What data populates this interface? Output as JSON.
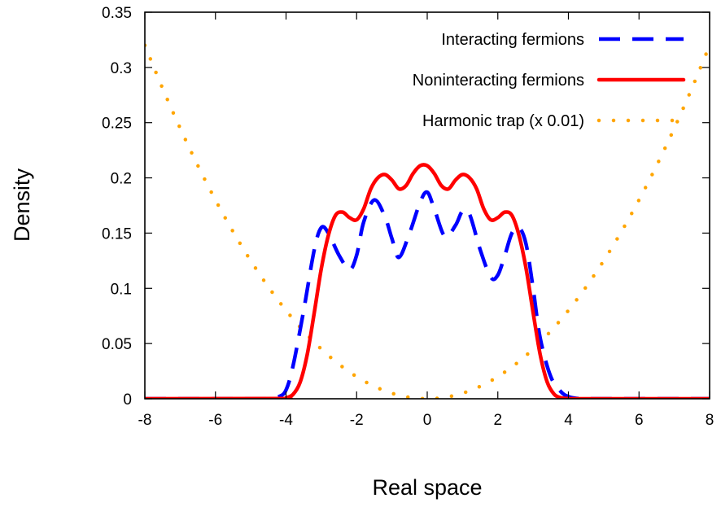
{
  "chart_data": {
    "type": "line",
    "xlabel": "Real space",
    "ylabel": "Density",
    "xlim": [
      -8,
      8
    ],
    "ylim": [
      0,
      0.35
    ],
    "xticks": [
      "-8",
      "-6",
      "-4",
      "-2",
      "0",
      "2",
      "4",
      "6",
      "8"
    ],
    "yticks": [
      "0",
      "0.05",
      "0.1",
      "0.15",
      "0.2",
      "0.25",
      "0.3",
      "0.35"
    ],
    "grid": false,
    "legend_position": "top-right",
    "series": [
      {
        "name": "Interacting fermions",
        "color": "#0000ff",
        "style": "dashed",
        "x": [
          -8,
          -5,
          -4.5,
          -4.2,
          -4.0,
          -3.8,
          -3.5,
          -3.2,
          -3.0,
          -2.8,
          -2.5,
          -2.2,
          -2.0,
          -1.8,
          -1.5,
          -1.2,
          -1.0,
          -0.8,
          -0.5,
          -0.2,
          0,
          0.2,
          0.5,
          0.8,
          1.0,
          1.2,
          1.5,
          1.8,
          2.0,
          2.2,
          2.4,
          2.6,
          2.8,
          3.0,
          3.2,
          3.5,
          3.8,
          4.0,
          4.2,
          4.5,
          5,
          8
        ],
        "y": [
          0,
          0,
          0.0005,
          0.002,
          0.008,
          0.03,
          0.08,
          0.135,
          0.155,
          0.15,
          0.13,
          0.117,
          0.13,
          0.16,
          0.18,
          0.165,
          0.145,
          0.128,
          0.15,
          0.178,
          0.187,
          0.172,
          0.147,
          0.157,
          0.17,
          0.167,
          0.135,
          0.11,
          0.112,
          0.13,
          0.15,
          0.155,
          0.14,
          0.1,
          0.055,
          0.02,
          0.006,
          0.002,
          0.0005,
          0,
          0,
          0
        ]
      },
      {
        "name": "Noninteracting fermions",
        "color": "#ff0000",
        "style": "solid",
        "x": [
          -8,
          -4.2,
          -4.0,
          -3.8,
          -3.6,
          -3.4,
          -3.2,
          -3.0,
          -2.8,
          -2.6,
          -2.4,
          -2.2,
          -2.0,
          -1.8,
          -1.6,
          -1.4,
          -1.2,
          -1.0,
          -0.8,
          -0.6,
          -0.4,
          -0.2,
          0,
          0.2,
          0.4,
          0.6,
          0.8,
          1.0,
          1.2,
          1.4,
          1.6,
          1.8,
          2.0,
          2.2,
          2.4,
          2.6,
          2.8,
          3.0,
          3.2,
          3.4,
          3.6,
          3.8,
          4.0,
          4.2,
          8
        ],
        "y": [
          0,
          0.0002,
          0.0008,
          0.004,
          0.015,
          0.04,
          0.078,
          0.118,
          0.148,
          0.166,
          0.169,
          0.164,
          0.162,
          0.172,
          0.19,
          0.2,
          0.203,
          0.198,
          0.19,
          0.193,
          0.204,
          0.211,
          0.211,
          0.204,
          0.193,
          0.19,
          0.198,
          0.203,
          0.2,
          0.19,
          0.172,
          0.162,
          0.164,
          0.169,
          0.166,
          0.148,
          0.118,
          0.078,
          0.04,
          0.015,
          0.004,
          0.0008,
          0.0002,
          0,
          0
        ]
      },
      {
        "name": "Harmonic trap (x 0.01)",
        "color": "#ffa500",
        "style": "dotted",
        "x": [
          -8,
          -7.5,
          -7,
          -6.5,
          -6,
          -5.5,
          -5,
          -4.5,
          -4,
          -3.5,
          -3,
          -2.5,
          -2,
          -1.5,
          -1,
          -0.5,
          0,
          0.5,
          1,
          1.5,
          2,
          2.5,
          3,
          3.5,
          4,
          4.5,
          5,
          5.5,
          6,
          6.5,
          7,
          7.5,
          8
        ],
        "y": [
          0.32,
          0.28125,
          0.245,
          0.21125,
          0.18,
          0.15125,
          0.125,
          0.10125,
          0.08,
          0.06125,
          0.045,
          0.03125,
          0.02,
          0.01125,
          0.005,
          0.00125,
          0,
          0.00125,
          0.005,
          0.01125,
          0.02,
          0.03125,
          0.045,
          0.06125,
          0.08,
          0.10125,
          0.125,
          0.15125,
          0.18,
          0.21125,
          0.245,
          0.28125,
          0.32
        ]
      }
    ]
  }
}
